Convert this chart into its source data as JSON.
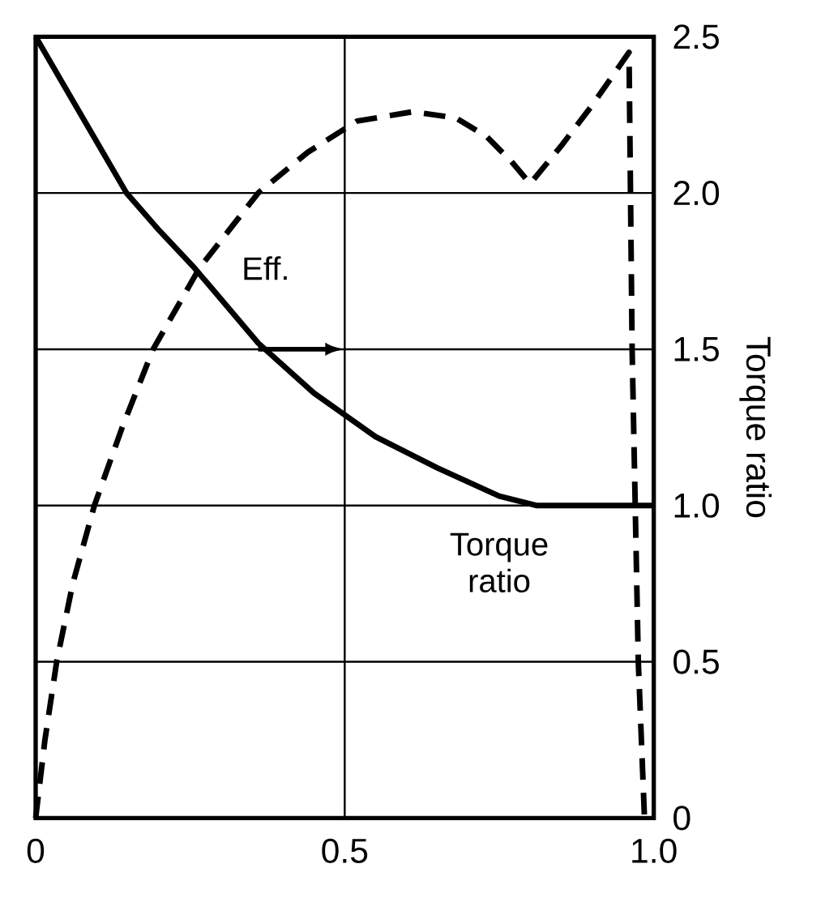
{
  "chart_data": {
    "type": "line",
    "ylabel": "Torque ratio",
    "xlim": [
      0,
      1.0
    ],
    "ylim": [
      0,
      2.5
    ],
    "xticks": [
      0,
      0.5,
      {
        "value": 1.0,
        "label": "1.0"
      }
    ],
    "yticks": [
      0,
      0.5,
      {
        "value": 1.0,
        "label": "1.0"
      },
      1.5,
      {
        "value": 2.0,
        "label": "2.0"
      },
      2.5
    ],
    "grid": true,
    "legend": false,
    "series": [
      {
        "name": "Torque ratio",
        "color": "#000000",
        "line_style": "solid",
        "x": [
          0,
          0.05,
          0.1,
          0.147,
          0.2,
          0.257,
          0.3,
          0.36,
          0.45,
          0.55,
          0.65,
          0.75,
          0.81,
          0.9,
          1.0
        ],
        "values": [
          2.5,
          2.33,
          2.16,
          2.0,
          1.88,
          1.76,
          1.66,
          1.52,
          1.36,
          1.22,
          1.12,
          1.03,
          1.0,
          1.0,
          1.0
        ]
      },
      {
        "name": "Eff.",
        "color": "#000000",
        "line_style": "dashed",
        "x": [
          0,
          0.015,
          0.034,
          0.06,
          0.095,
          0.14,
          0.19,
          0.265,
          0.36,
          0.44,
          0.52,
          0.61,
          0.68,
          0.73,
          0.77,
          0.8,
          0.85,
          0.9,
          0.96,
          0.965,
          0.975,
          0.985
        ],
        "values": [
          0,
          0.25,
          0.5,
          0.75,
          1.0,
          1.25,
          1.5,
          1.76,
          2.0,
          2.13,
          2.23,
          2.26,
          2.24,
          2.18,
          2.1,
          2.03,
          2.15,
          2.28,
          2.45,
          1.5,
          0.5,
          0
        ]
      }
    ]
  }
}
